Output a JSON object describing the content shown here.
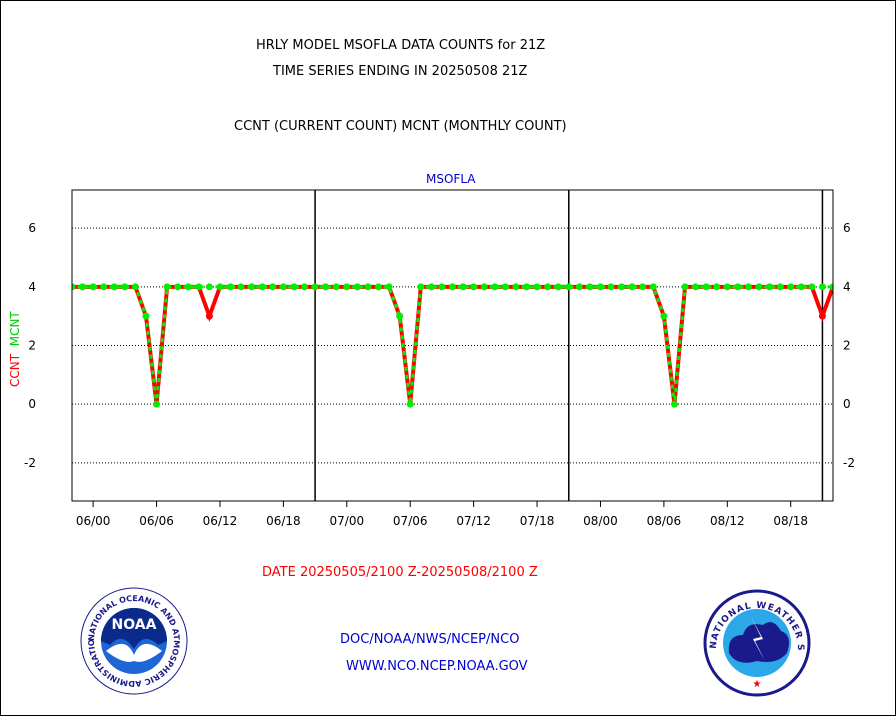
{
  "header": {
    "title_line1": "HRLY MODEL MSOFLA DATA COUNTS for 21Z",
    "title_line2": "TIME SERIES ENDING IN 20250508 21Z",
    "subtitle": "CCNT (CURRENT COUNT) MCNT (MONTHLY COUNT)"
  },
  "footer": {
    "date_range": "DATE 20250505/2100 Z-20250508/2100 Z",
    "org_path": "DOC/NOAA/NWS/NCEP/NCO",
    "url": "WWW.NCO.NCEP.NOAA.GOV",
    "noaa_logo_text": "NOAA",
    "noaa_ring_text": "NATIONAL OCEANIC AND ATMOSPHERIC ADMINISTRATION · U.S. DEPARTMENT OF COMMERCE ·",
    "nws_ring_text": "NATIONAL WEATHER SERVICE"
  },
  "colors": {
    "ccnt": "#ff0000",
    "mcnt": "#00ee00",
    "series_title": "#0000cc",
    "date": "#ff0000",
    "links": "#0000cc"
  },
  "chart_data": {
    "type": "line",
    "title": "MSOFLA",
    "ylabel_parts": [
      "CCNT",
      "MCNT"
    ],
    "ylim": [
      -3.3,
      7.3
    ],
    "yticks": [
      -2,
      0,
      2,
      4,
      6
    ],
    "ytick_labels": [
      "-2",
      "0",
      "2",
      "4",
      "6"
    ],
    "grid": "horizontal dotted",
    "xlim": [
      -2,
      70
    ],
    "xticks": [
      0,
      6,
      12,
      18,
      24,
      30,
      36,
      42,
      48,
      54,
      60,
      66
    ],
    "xtick_labels": [
      "06/00",
      "06/06",
      "06/12",
      "06/18",
      "07/00",
      "07/06",
      "07/12",
      "07/18",
      "08/00",
      "08/06",
      "08/12",
      "08/18"
    ],
    "day_separators": [
      21,
      45,
      69
    ],
    "series": [
      {
        "name": "CCNT",
        "x": [
          -3,
          -2,
          -1,
          0,
          1,
          2,
          3,
          4,
          5,
          6,
          7,
          8,
          9,
          10,
          11,
          12,
          13,
          14,
          15,
          16,
          17,
          18,
          19,
          20,
          21,
          22,
          23,
          24,
          25,
          26,
          27,
          28,
          29,
          30,
          31,
          32,
          33,
          34,
          35,
          36,
          37,
          38,
          39,
          40,
          41,
          42,
          43,
          44,
          45,
          46,
          47,
          48,
          49,
          50,
          51,
          52,
          53,
          54,
          55,
          56,
          57,
          58,
          59,
          60,
          61,
          62,
          63,
          64,
          65,
          66,
          67,
          68,
          69,
          70,
          71
        ],
        "values": [
          4,
          4,
          4,
          4,
          4,
          4,
          4,
          4,
          3,
          0,
          4,
          4,
          4,
          4,
          3,
          4,
          4,
          4,
          4,
          4,
          4,
          4,
          4,
          4,
          4,
          4,
          4,
          4,
          4,
          4,
          4,
          4,
          3,
          0,
          4,
          4,
          4,
          4,
          4,
          4,
          4,
          4,
          4,
          4,
          4,
          4,
          4,
          4,
          4,
          4,
          4,
          4,
          4,
          4,
          4,
          4,
          4,
          3,
          0,
          4,
          4,
          4,
          4,
          4,
          4,
          4,
          4,
          4,
          4,
          4,
          4,
          4,
          3,
          4,
          4
        ]
      },
      {
        "name": "MCNT",
        "x": [
          -3,
          -2,
          -1,
          0,
          1,
          2,
          3,
          4,
          5,
          6,
          7,
          8,
          9,
          10,
          11,
          12,
          13,
          14,
          15,
          16,
          17,
          18,
          19,
          20,
          21,
          22,
          23,
          24,
          25,
          26,
          27,
          28,
          29,
          30,
          31,
          32,
          33,
          34,
          35,
          36,
          37,
          38,
          39,
          40,
          41,
          42,
          43,
          44,
          45,
          46,
          47,
          48,
          49,
          50,
          51,
          52,
          53,
          54,
          55,
          56,
          57,
          58,
          59,
          60,
          61,
          62,
          63,
          64,
          65,
          66,
          67,
          68,
          69,
          70,
          71
        ],
        "values": [
          4,
          4,
          4,
          4,
          4,
          4,
          4,
          4,
          3,
          0,
          4,
          4,
          4,
          4,
          4,
          4,
          4,
          4,
          4,
          4,
          4,
          4,
          4,
          4,
          4,
          4,
          4,
          4,
          4,
          4,
          4,
          4,
          3,
          0,
          4,
          4,
          4,
          4,
          4,
          4,
          4,
          4,
          4,
          4,
          4,
          4,
          4,
          4,
          4,
          4,
          4,
          4,
          4,
          4,
          4,
          4,
          4,
          3,
          0,
          4,
          4,
          4,
          4,
          4,
          4,
          4,
          4,
          4,
          4,
          4,
          4,
          4,
          4,
          4,
          4
        ]
      }
    ]
  }
}
